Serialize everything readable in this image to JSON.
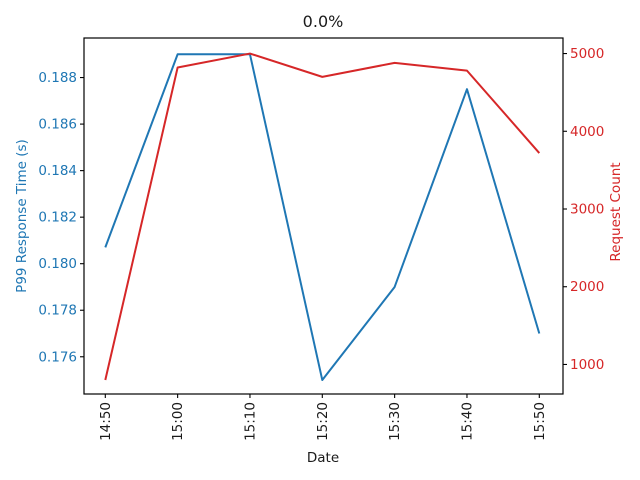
{
  "chart_data": {
    "type": "line",
    "title": "0.0%",
    "xlabel": "Date",
    "x_tick_labels": [
      "14:50",
      "15:00",
      "15:10",
      "15:20",
      "15:30",
      "15:40",
      "15:50"
    ],
    "series": [
      {
        "name": "p99-response-time",
        "axis": "left",
        "color": "#1f77b4",
        "values": [
          0.1807,
          0.189,
          0.189,
          0.175,
          0.179,
          0.1875,
          0.177
        ]
      },
      {
        "name": "request-count",
        "axis": "right",
        "color": "#d62728",
        "values": [
          800,
          4820,
          5000,
          4700,
          4880,
          4780,
          3720
        ]
      }
    ],
    "left_axis": {
      "label": "P99 Response Time (s)",
      "color": "#1f77b4",
      "tick_labels": [
        "0.176",
        "0.178",
        "0.180",
        "0.182",
        "0.184",
        "0.186",
        "0.188"
      ],
      "tick_values": [
        0.176,
        0.178,
        0.18,
        0.182,
        0.184,
        0.186,
        0.188
      ],
      "ylim": [
        0.1744,
        0.1897
      ]
    },
    "right_axis": {
      "label": "Request Count",
      "color": "#d62728",
      "tick_labels": [
        "1000",
        "2000",
        "3000",
        "4000",
        "5000"
      ],
      "tick_values": [
        1000,
        2000,
        3000,
        4000,
        5000
      ],
      "ylim": [
        620,
        5200
      ]
    },
    "grid": false,
    "legend": "none",
    "spine_color": "#000000",
    "tick_color": "#000000",
    "x_tick_label_color": "#1a1a1a"
  }
}
